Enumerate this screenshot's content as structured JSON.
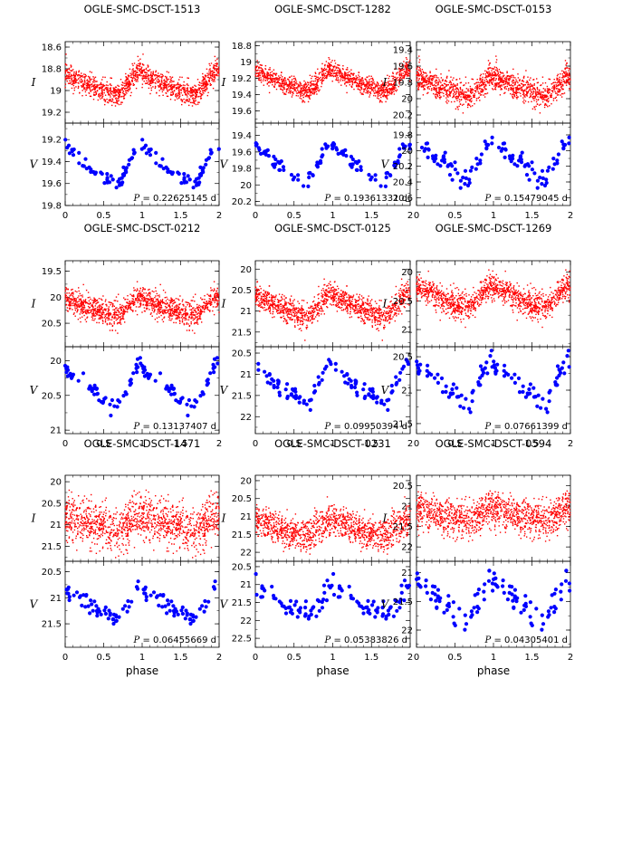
{
  "colors": {
    "I": "#ff0000",
    "V": "#0000ff",
    "axis": "#000000"
  },
  "xlabel": "phase",
  "chart_data": [
    {
      "type": "scatter",
      "title": "OGLE-SMC-DSCT-1513",
      "period_value": "0.22625145",
      "period_unit": "d",
      "x_ticks": [
        "0",
        "0.5",
        "1",
        "1.5",
        "2"
      ],
      "xlim": [
        0,
        2
      ],
      "I": {
        "label": "I",
        "ylim": [
          18.55,
          19.3
        ],
        "ticks": [
          18.6,
          18.8,
          19,
          19.2
        ],
        "tick_labels": [
          "18.6",
          "18.8",
          "19",
          "19.2"
        ],
        "mean": 18.93,
        "amp": 0.12,
        "scatter": 0.05
      },
      "V": {
        "label": "V",
        "ylim": [
          19.05,
          19.8
        ],
        "ticks": [
          19.2,
          19.4,
          19.6,
          19.8
        ],
        "tick_labels": [
          "19.2",
          "19.4",
          "19.6",
          "19.8"
        ],
        "mean": 19.42,
        "amp": 0.21,
        "scatter": 0.03
      }
    },
    {
      "type": "scatter",
      "title": "OGLE-SMC-DSCT-1282",
      "period_value": "0.19361331",
      "period_unit": "d",
      "x_ticks": [
        "0",
        "0.5",
        "1",
        "1.5",
        "2"
      ],
      "xlim": [
        0,
        2
      ],
      "I": {
        "label": "I",
        "ylim": [
          18.75,
          19.75
        ],
        "ticks": [
          18.8,
          19,
          19.2,
          19.4,
          19.6
        ],
        "tick_labels": [
          "18.8",
          "19",
          "19.2",
          "19.4",
          "19.6"
        ],
        "mean": 19.22,
        "amp": 0.14,
        "scatter": 0.06
      },
      "V": {
        "label": "V",
        "ylim": [
          19.25,
          20.25
        ],
        "ticks": [
          19.4,
          19.6,
          19.8,
          20,
          20.2
        ],
        "tick_labels": [
          "19.4",
          "19.6",
          "19.8",
          "20",
          "20.2"
        ],
        "mean": 19.72,
        "amp": 0.27,
        "scatter": 0.04
      }
    },
    {
      "type": "scatter",
      "title": "OGLE-SMC-DSCT-0153",
      "period_value": "0.15479045",
      "period_unit": "d",
      "x_ticks": [
        "0",
        "0.5",
        "1",
        "1.5",
        "2"
      ],
      "xlim": [
        0,
        2
      ],
      "I": {
        "label": "I",
        "ylim": [
          19.3,
          20.3
        ],
        "ticks": [
          19.4,
          19.6,
          19.8,
          20,
          20.2
        ],
        "tick_labels": [
          "19.4",
          "19.6",
          "19.8",
          "20",
          "20.2"
        ],
        "mean": 19.84,
        "amp": 0.14,
        "scatter": 0.08
      },
      "V": {
        "label": "V",
        "ylim": [
          19.65,
          20.7
        ],
        "ticks": [
          19.8,
          20,
          20.2,
          20.4,
          20.6
        ],
        "tick_labels": [
          "19.8",
          "20",
          "20.2",
          "20.4",
          "20.6"
        ],
        "mean": 20.08,
        "amp": 0.27,
        "scatter": 0.06
      }
    },
    {
      "type": "scatter",
      "title": "OGLE-SMC-DSCT-0212",
      "period_value": "0.13137407",
      "period_unit": "d",
      "x_ticks": [
        "0",
        "0.5",
        "1",
        "1.5",
        "2"
      ],
      "xlim": [
        0,
        2
      ],
      "I": {
        "label": "I",
        "ylim": [
          19.3,
          20.95
        ],
        "ticks": [
          19.5,
          20,
          20.5
        ],
        "tick_labels": [
          "19.5",
          "20",
          "20.5"
        ],
        "mean": 20.18,
        "amp": 0.18,
        "scatter": 0.12
      },
      "V": {
        "label": "V",
        "ylim": [
          19.8,
          21.05
        ],
        "ticks": [
          20,
          20.5,
          21
        ],
        "tick_labels": [
          "20",
          "20.5",
          "21"
        ],
        "mean": 20.35,
        "amp": 0.32,
        "scatter": 0.05
      }
    },
    {
      "type": "scatter",
      "title": "OGLE-SMC-DSCT-0125",
      "period_value": "0.09950394",
      "period_unit": "d",
      "x_ticks": [
        "0",
        "0.5",
        "1",
        "1.5",
        "2"
      ],
      "xlim": [
        0,
        2
      ],
      "I": {
        "label": "I",
        "ylim": [
          19.8,
          21.85
        ],
        "ticks": [
          20,
          20.5,
          21,
          21.5
        ],
        "tick_labels": [
          "20",
          "20.5",
          "21",
          "21.5"
        ],
        "mean": 20.85,
        "amp": 0.3,
        "scatter": 0.15
      },
      "V": {
        "label": "V",
        "ylim": [
          20.35,
          22.4
        ],
        "ticks": [
          20.5,
          21,
          21.5,
          22
        ],
        "tick_labels": [
          "20.5",
          "21",
          "21.5",
          "22"
        ],
        "mean": 21.2,
        "amp": 0.48,
        "scatter": 0.1
      }
    },
    {
      "type": "scatter",
      "title": "OGLE-SMC-DSCT-1269",
      "period_value": "0.07661399",
      "period_unit": "d",
      "x_ticks": [
        "0",
        "0.5",
        "1",
        "1.5",
        "2"
      ],
      "xlim": [
        0,
        2
      ],
      "I": {
        "label": "I",
        "ylim": [
          19.8,
          21.3
        ],
        "ticks": [
          20,
          20.5,
          21
        ],
        "tick_labels": [
          "20",
          "20.5",
          "21"
        ],
        "mean": 20.42,
        "amp": 0.2,
        "scatter": 0.12
      },
      "V": {
        "label": "V",
        "ylim": [
          20.35,
          21.65
        ],
        "ticks": [
          20.5,
          21,
          21.5
        ],
        "tick_labels": [
          "20.5",
          "21",
          "21.5"
        ],
        "mean": 20.85,
        "amp": 0.32,
        "scatter": 0.08
      }
    },
    {
      "type": "scatter",
      "title": "OGLE-SMC-DSCT-1471",
      "period_value": "0.06455669",
      "period_unit": "d",
      "x_ticks": [
        "0",
        "0.5",
        "1",
        "1.5",
        "2"
      ],
      "xlim": [
        0,
        2
      ],
      "I": {
        "label": "I",
        "ylim": [
          19.85,
          21.85
        ],
        "ticks": [
          20,
          20.5,
          21,
          21.5
        ],
        "tick_labels": [
          "20",
          "20.5",
          "21",
          "21.5"
        ],
        "mean": 20.95,
        "amp": 0.18,
        "scatter": 0.25
      },
      "V": {
        "label": "V",
        "ylim": [
          20.3,
          21.95
        ],
        "ticks": [
          20.5,
          21,
          21.5
        ],
        "tick_labels": [
          "20.5",
          "21",
          "21.5"
        ],
        "mean": 21.1,
        "amp": 0.32,
        "scatter": 0.08
      }
    },
    {
      "type": "scatter",
      "title": "OGLE-SMC-DSCT-0231",
      "period_value": "0.05383826",
      "period_unit": "d",
      "x_ticks": [
        "0",
        "0.5",
        "1",
        "1.5",
        "2"
      ],
      "xlim": [
        0,
        2
      ],
      "I": {
        "label": "I",
        "ylim": [
          19.85,
          22.25
        ],
        "ticks": [
          20,
          20.5,
          21,
          21.5,
          22
        ],
        "tick_labels": [
          "20",
          "20.5",
          "21",
          "21.5",
          "22"
        ],
        "mean": 21.3,
        "amp": 0.25,
        "scatter": 0.22
      },
      "V": {
        "label": "V",
        "ylim": [
          20.35,
          22.75
        ],
        "ticks": [
          20.5,
          21,
          21.5,
          22,
          22.5
        ],
        "tick_labels": [
          "20.5",
          "21",
          "21.5",
          "22",
          "22.5"
        ],
        "mean": 21.45,
        "amp": 0.4,
        "scatter": 0.17
      }
    },
    {
      "type": "scatter",
      "title": "OGLE-SMC-DSCT-0594",
      "period_value": "0.04305401",
      "period_unit": "d",
      "x_ticks": [
        "0",
        "0.5",
        "1",
        "1.5",
        "2"
      ],
      "xlim": [
        0,
        2
      ],
      "I": {
        "label": "I",
        "ylim": [
          20.25,
          22.35
        ],
        "ticks": [
          20.5,
          21,
          21.5,
          22
        ],
        "tick_labels": [
          "20.5",
          "21",
          "21.5",
          "22"
        ],
        "mean": 21.2,
        "amp": 0.2,
        "scatter": 0.22
      },
      "V": {
        "label": "V",
        "ylim": [
          20.8,
          22.3
        ],
        "ticks": [
          21,
          21.5,
          22
        ],
        "tick_labels": [
          "21",
          "21.5",
          "22"
        ],
        "mean": 21.45,
        "amp": 0.4,
        "scatter": 0.1
      }
    }
  ]
}
